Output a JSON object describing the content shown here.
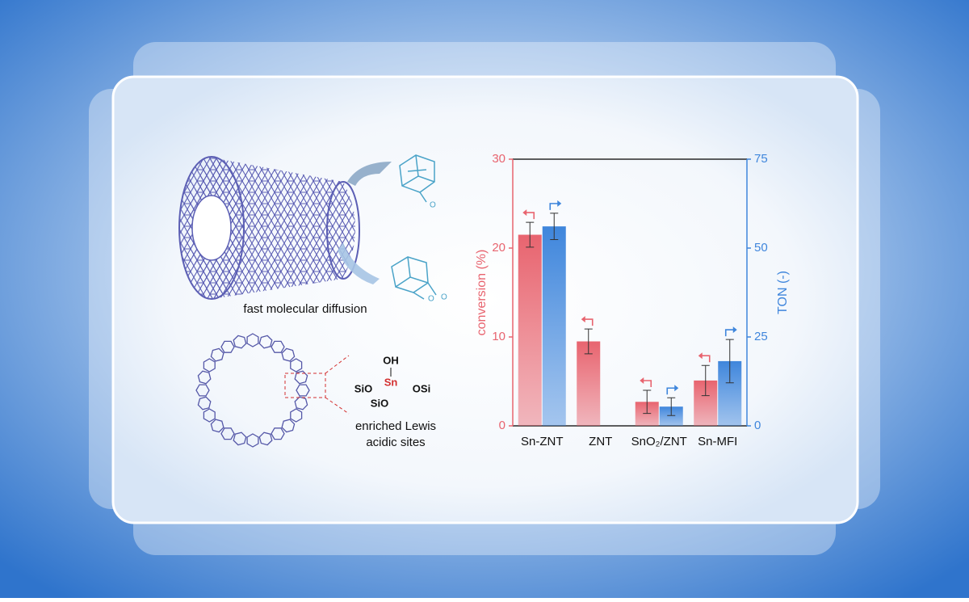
{
  "diagram": {
    "tube_caption": "fast molecular diffusion",
    "ring_caption": [
      "enriched Lewis",
      "acidic sites"
    ],
    "site": {
      "top": "OH",
      "center": "Sn",
      "left": "SiO",
      "right": "OSi",
      "bottom": "SiO"
    },
    "molecule_atoms": [
      "O",
      "O",
      "O"
    ]
  },
  "chart_data": {
    "type": "bar",
    "categories": [
      "Sn-ZNT",
      "ZNT",
      "SnO₂/ZNT",
      "Sn-MFI"
    ],
    "ylabel": "conversion (%)",
    "y2label": "TON (-)",
    "ylim": [
      0,
      30
    ],
    "yticks": [
      0,
      10,
      20,
      30
    ],
    "y2lim": [
      0,
      75
    ],
    "y2ticks": [
      0,
      25,
      50,
      75
    ],
    "series": [
      {
        "name": "conversion",
        "color": "#e8646f",
        "values": [
          21.5,
          9.5,
          2.7,
          5.1
        ],
        "errors": [
          1.4,
          1.4,
          1.3,
          1.7
        ]
      },
      {
        "name": "TON",
        "color": "#3f86dc",
        "axis": "y2",
        "values": [
          56.1,
          null,
          5.4,
          18.2
        ],
        "errors": [
          3.7,
          null,
          2.5,
          6.1
        ]
      }
    ]
  }
}
